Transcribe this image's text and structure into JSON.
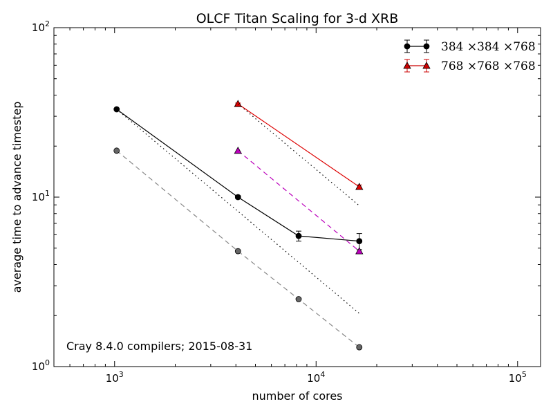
{
  "chart_data": {
    "type": "line",
    "title": "OLCF Titan Scaling for 3-d XRB",
    "xlabel": "number of cores",
    "ylabel": "average time to advance timestep",
    "xscale": "log",
    "yscale": "log",
    "xlim": [
      500,
      130000
    ],
    "ylim": [
      1,
      100
    ],
    "xticks": [
      {
        "value": 1000,
        "label": "10^3"
      },
      {
        "value": 10000,
        "label": "10^4"
      },
      {
        "value": 100000,
        "label": "10^5"
      }
    ],
    "yticks": [
      {
        "value": 1,
        "label": "10^0"
      },
      {
        "value": 10,
        "label": "10^1"
      },
      {
        "value": 100,
        "label": "10^2"
      }
    ],
    "annotation": "Cray 8.4.0 compilers; 2015-08-31",
    "legend_position": "top-right",
    "legend": [
      {
        "label": "384 ×384 ×768",
        "color": "#000000",
        "marker": "circle"
      },
      {
        "label": "768 ×768 ×768",
        "color": "#cc0000",
        "marker": "triangle"
      }
    ],
    "series": [
      {
        "color": "#000000",
        "style": "solid",
        "marker": "circle",
        "errorbars": true,
        "x": [
          1024,
          4096,
          8192,
          16384
        ],
        "y": [
          33.0,
          10.0,
          5.9,
          5.5
        ],
        "yerr": [
          0.3,
          0.2,
          0.4,
          0.6
        ]
      },
      {
        "color": "#dd0000",
        "style": "solid",
        "marker": "triangle",
        "errorbars": true,
        "x": [
          4096,
          16384
        ],
        "y": [
          35.5,
          11.5
        ],
        "yerr": [
          0.4,
          0.3
        ]
      },
      {
        "color": "#888888",
        "style": "dashed",
        "marker": "circle",
        "marker_fill": "#666666",
        "x": [
          1024,
          4096,
          8192,
          16384
        ],
        "y": [
          18.8,
          4.8,
          2.5,
          1.3
        ]
      },
      {
        "color": "#bb00bb",
        "style": "dashed",
        "marker": "triangle",
        "x": [
          4096,
          16384
        ],
        "y": [
          18.8,
          4.8
        ]
      },
      {
        "color": "#000000",
        "style": "dotted",
        "marker": "none",
        "x": [
          1024,
          16384
        ],
        "y": [
          33.0,
          2.06
        ]
      },
      {
        "color": "#000000",
        "style": "dotted",
        "marker": "none",
        "x": [
          4096,
          16384
        ],
        "y": [
          35.5,
          8.9
        ]
      }
    ]
  }
}
